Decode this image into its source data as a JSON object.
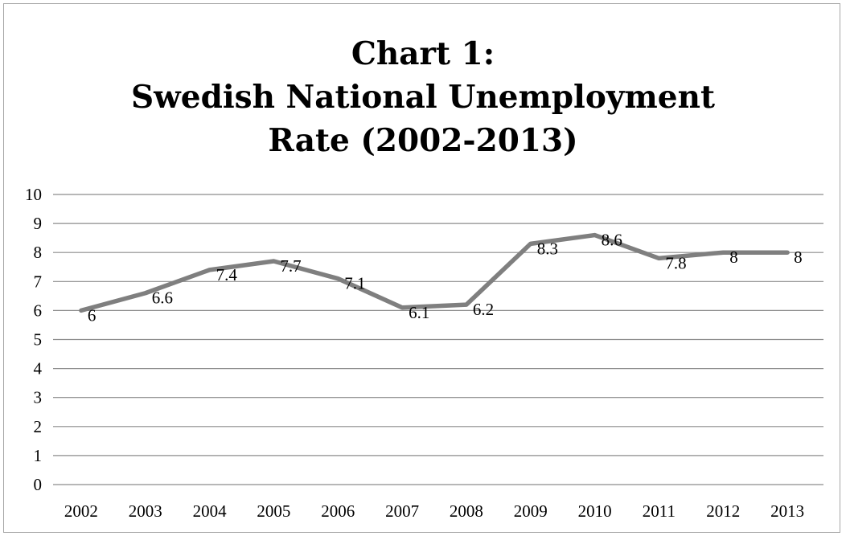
{
  "chart_data": {
    "type": "line",
    "title_lines": [
      "Chart 1:",
      "Swedish National Unemployment",
      "Rate (2002-2013)"
    ],
    "xlabel": "",
    "ylabel": "",
    "categories": [
      "2002",
      "2003",
      "2004",
      "2005",
      "2006",
      "2007",
      "2008",
      "2009",
      "2010",
      "2011",
      "2012",
      "2013"
    ],
    "series": [
      {
        "values": [
          6,
          6.6,
          7.4,
          7.7,
          7.1,
          6.1,
          6.2,
          8.3,
          8.6,
          7.8,
          8,
          8
        ],
        "labels": [
          "6",
          "6.6",
          "7.4",
          "7.7",
          "7.1",
          "6.1",
          "6.2",
          "8.3",
          "8.6",
          "7.8",
          "8",
          "8"
        ],
        "color": "#7f7f7f"
      }
    ],
    "ylim": [
      0,
      10
    ],
    "yticks": [
      "0",
      "1",
      "2",
      "3",
      "4",
      "5",
      "6",
      "7",
      "8",
      "9",
      "10"
    ],
    "grid": true,
    "legend": "none",
    "gridline_color": "#8c8c8c",
    "frame_color": "#a6a6a6"
  }
}
